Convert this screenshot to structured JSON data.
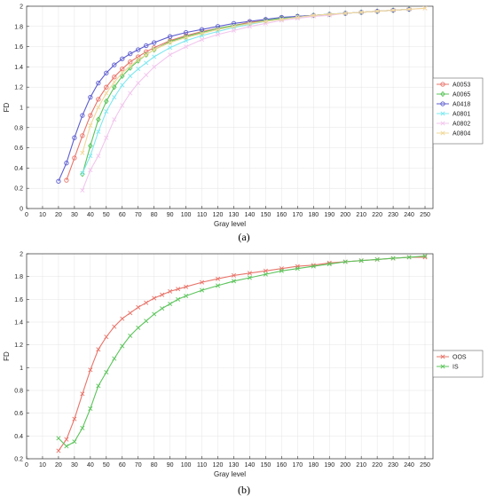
{
  "chart_data": [
    {
      "type": "line",
      "panel_label": "(a)",
      "xlabel": "Gray level",
      "ylabel": "FD",
      "xlim": [
        0,
        255
      ],
      "ylim": [
        0,
        2
      ],
      "xticks": [
        0,
        10,
        20,
        30,
        40,
        50,
        60,
        70,
        80,
        90,
        100,
        110,
        120,
        130,
        140,
        150,
        160,
        170,
        180,
        190,
        200,
        210,
        220,
        230,
        240,
        250
      ],
      "yticks": [
        0,
        0.2,
        0.4,
        0.6,
        0.8,
        1,
        1.2,
        1.4,
        1.6,
        1.8,
        2
      ],
      "grid": true,
      "legend_position": "right",
      "series": [
        {
          "name": "A0053",
          "color": "#e8746a",
          "marker": "o",
          "x": [
            25,
            30,
            35,
            40,
            45,
            50,
            55,
            60,
            65,
            70,
            75,
            80,
            90,
            100,
            110,
            120,
            130,
            140,
            150,
            160,
            170,
            180,
            190,
            200,
            210,
            220,
            230,
            240
          ],
          "y": [
            0.28,
            0.5,
            0.72,
            0.92,
            1.08,
            1.2,
            1.3,
            1.38,
            1.45,
            1.5,
            1.55,
            1.59,
            1.66,
            1.71,
            1.75,
            1.78,
            1.81,
            1.84,
            1.86,
            1.88,
            1.9,
            1.91,
            1.92,
            1.93,
            1.94,
            1.95,
            1.96,
            1.97
          ]
        },
        {
          "name": "A0065",
          "color": "#5cc45c",
          "marker": "d",
          "x": [
            35,
            40,
            45,
            50,
            55,
            60,
            65,
            70,
            75,
            80,
            90,
            100,
            110,
            120,
            130,
            140,
            150,
            160,
            170,
            180,
            190,
            200,
            210,
            220,
            230,
            240
          ],
          "y": [
            0.34,
            0.62,
            0.88,
            1.06,
            1.2,
            1.31,
            1.39,
            1.46,
            1.52,
            1.57,
            1.65,
            1.7,
            1.74,
            1.78,
            1.81,
            1.83,
            1.86,
            1.88,
            1.9,
            1.91,
            1.92,
            1.93,
            1.94,
            1.95,
            1.96,
            1.97
          ]
        },
        {
          "name": "A0418",
          "color": "#5e5ed0",
          "marker": "o",
          "x": [
            20,
            25,
            30,
            35,
            40,
            45,
            50,
            55,
            60,
            65,
            70,
            75,
            80,
            90,
            100,
            110,
            120,
            130,
            140,
            150,
            160,
            170,
            180,
            190,
            200,
            210,
            220,
            230,
            240
          ],
          "y": [
            0.27,
            0.45,
            0.7,
            0.92,
            1.1,
            1.24,
            1.34,
            1.42,
            1.48,
            1.53,
            1.57,
            1.61,
            1.64,
            1.7,
            1.74,
            1.77,
            1.8,
            1.83,
            1.85,
            1.87,
            1.89,
            1.9,
            1.91,
            1.92,
            1.93,
            1.94,
            1.95,
            1.96,
            1.97
          ]
        },
        {
          "name": "A0801",
          "color": "#7ee8f0",
          "marker": "x",
          "x": [
            35,
            40,
            45,
            50,
            55,
            60,
            65,
            70,
            75,
            80,
            90,
            100,
            110,
            120,
            130,
            140,
            150,
            160,
            170,
            180,
            190,
            200,
            210,
            220,
            230,
            240
          ],
          "y": [
            0.35,
            0.52,
            0.76,
            0.96,
            1.1,
            1.22,
            1.31,
            1.38,
            1.44,
            1.5,
            1.59,
            1.66,
            1.71,
            1.75,
            1.79,
            1.82,
            1.85,
            1.87,
            1.89,
            1.91,
            1.92,
            1.93,
            1.94,
            1.95,
            1.96,
            1.97
          ]
        },
        {
          "name": "A0802",
          "color": "#f2c6ee",
          "marker": "x",
          "x": [
            35,
            40,
            45,
            50,
            55,
            60,
            65,
            70,
            75,
            80,
            90,
            100,
            110,
            120,
            130,
            140,
            150,
            160,
            170,
            180,
            190,
            200,
            210,
            220,
            230,
            240,
            250
          ],
          "y": [
            0.18,
            0.38,
            0.52,
            0.7,
            0.88,
            1.02,
            1.14,
            1.24,
            1.32,
            1.4,
            1.52,
            1.6,
            1.67,
            1.72,
            1.76,
            1.8,
            1.83,
            1.86,
            1.88,
            1.9,
            1.91,
            1.93,
            1.94,
            1.95,
            1.96,
            1.97,
            1.98
          ]
        },
        {
          "name": "A0804",
          "color": "#f2d898",
          "marker": "x",
          "x": [
            35,
            40,
            45,
            50,
            55,
            60,
            65,
            70,
            75,
            80,
            90,
            100,
            110,
            120,
            130,
            140,
            150,
            160,
            170,
            180,
            190,
            200,
            210,
            220,
            230,
            240,
            250
          ],
          "y": [
            0.55,
            0.82,
            1.0,
            1.14,
            1.25,
            1.34,
            1.41,
            1.47,
            1.52,
            1.57,
            1.64,
            1.69,
            1.73,
            1.77,
            1.8,
            1.83,
            1.85,
            1.87,
            1.89,
            1.91,
            1.92,
            1.93,
            1.94,
            1.95,
            1.96,
            1.97,
            1.98
          ]
        }
      ]
    },
    {
      "type": "line",
      "panel_label": "(b)",
      "xlabel": "Gray level",
      "ylabel": "FD",
      "xlim": [
        0,
        255
      ],
      "ylim": [
        0.2,
        2
      ],
      "xticks": [
        0,
        10,
        20,
        30,
        40,
        50,
        60,
        70,
        80,
        90,
        100,
        110,
        120,
        130,
        140,
        150,
        160,
        170,
        180,
        190,
        200,
        210,
        220,
        230,
        240,
        250
      ],
      "yticks": [
        0.2,
        0.4,
        0.6,
        0.8,
        1,
        1.2,
        1.4,
        1.6,
        1.8,
        2
      ],
      "grid": true,
      "legend_position": "right",
      "series": [
        {
          "name": "OOS",
          "color": "#e8746a",
          "marker": "x",
          "x": [
            20,
            25,
            30,
            35,
            40,
            45,
            50,
            55,
            60,
            65,
            70,
            75,
            80,
            85,
            90,
            95,
            100,
            110,
            120,
            130,
            140,
            150,
            160,
            170,
            180,
            190,
            200,
            210,
            220,
            230,
            240,
            250
          ],
          "y": [
            0.27,
            0.37,
            0.55,
            0.77,
            0.98,
            1.16,
            1.27,
            1.36,
            1.43,
            1.48,
            1.53,
            1.57,
            1.61,
            1.64,
            1.67,
            1.69,
            1.71,
            1.75,
            1.78,
            1.81,
            1.83,
            1.85,
            1.87,
            1.89,
            1.9,
            1.92,
            1.93,
            1.94,
            1.95,
            1.96,
            1.97,
            1.97
          ]
        },
        {
          "name": "IS",
          "color": "#5cc45c",
          "marker": "x",
          "x": [
            20,
            25,
            30,
            35,
            40,
            45,
            50,
            55,
            60,
            65,
            70,
            75,
            80,
            85,
            90,
            95,
            100,
            110,
            120,
            130,
            140,
            150,
            160,
            170,
            180,
            190,
            200,
            210,
            220,
            230,
            240,
            250
          ],
          "y": [
            0.38,
            0.31,
            0.35,
            0.47,
            0.64,
            0.84,
            0.96,
            1.08,
            1.19,
            1.28,
            1.35,
            1.41,
            1.47,
            1.52,
            1.56,
            1.6,
            1.63,
            1.68,
            1.72,
            1.76,
            1.79,
            1.82,
            1.85,
            1.87,
            1.89,
            1.91,
            1.93,
            1.94,
            1.95,
            1.96,
            1.97,
            1.98
          ]
        }
      ]
    }
  ]
}
